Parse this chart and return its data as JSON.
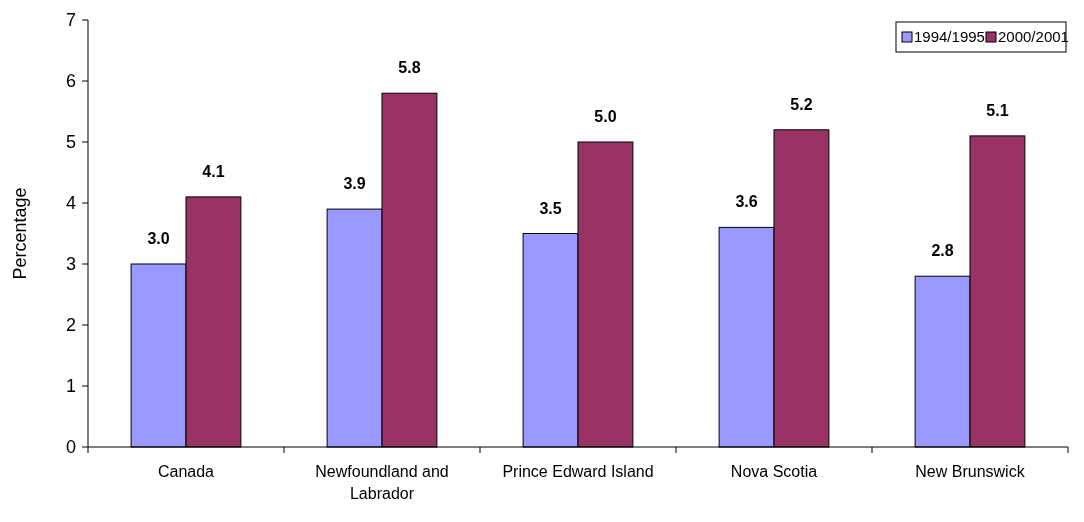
{
  "chart_data": {
    "type": "bar",
    "ylabel": "Percentage",
    "categories": [
      "Canada",
      "Newfoundland and Labrador",
      "Prince Edward Island",
      "Nova Scotia",
      "New Brunswick"
    ],
    "series": [
      {
        "name": "1994/1995",
        "color": "#9999ff",
        "values": [
          3.0,
          3.9,
          3.5,
          3.6,
          2.8
        ],
        "value_labels": [
          "3.0",
          "3.9",
          "3.5",
          "3.6",
          "2.8"
        ]
      },
      {
        "name": "2000/2001",
        "color": "#993366",
        "values": [
          4.1,
          5.8,
          5.0,
          5.2,
          5.1
        ],
        "value_labels": [
          "4.1",
          "5.8",
          "5.0",
          "5.2",
          "5.1"
        ]
      }
    ],
    "ylim": [
      0,
      7
    ],
    "yticks": [
      0,
      1,
      2,
      3,
      4,
      5,
      6,
      7
    ],
    "grid": false,
    "legend": "top right"
  }
}
